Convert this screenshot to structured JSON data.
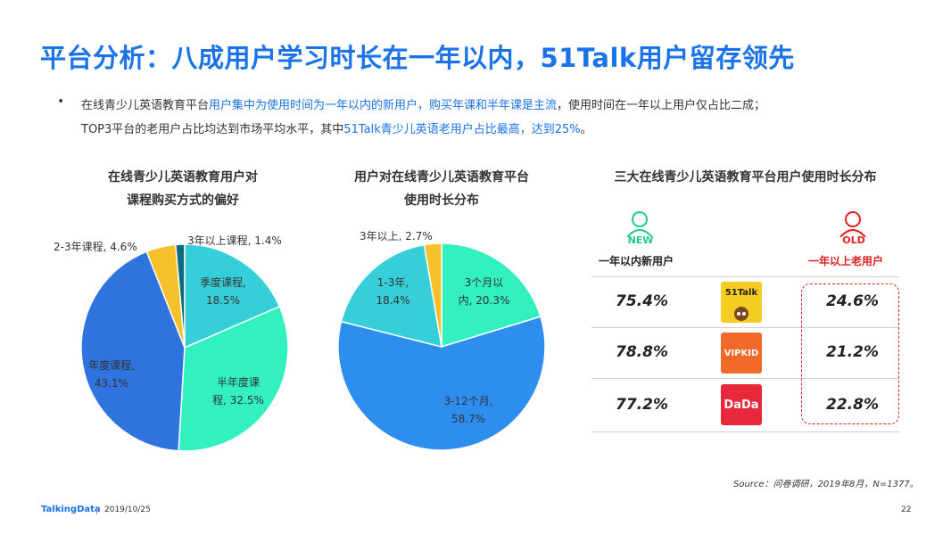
{
  "page": {
    "title": "平台分析：八成用户学习时长在一年以内，51Talk用户留存领先",
    "bullet": {
      "l1_a": "在线青少儿英语教育平台",
      "l1_b": "用户集中为使用时间为一年以内的新用户，购买年课和半年课是主流",
      "l1_c": "，使用时间在一年以上用户仅占比二成；",
      "l2_a": "TOP3平台的老用户占比均达到市场平均水平，其中",
      "l2_b": "51Talk青少儿英语老用户占比最高，达到25%",
      "l2_c": "。"
    },
    "source": "Source：问卷调研，2019年8月，N=1377。",
    "footer": {
      "brand": "TalkingData",
      "date": "2019/10/25",
      "page_no": "22"
    }
  },
  "chart_data": [
    {
      "type": "pie",
      "title_l1": "在线青少儿英语教育用户对",
      "title_l2": "课程购买方式的偏好",
      "slices": [
        {
          "label": "季度课程",
          "value": 18.5,
          "color": "#36cfd9",
          "t1": "季度课程,",
          "t2": "18.5%"
        },
        {
          "label": "半年度课程",
          "value": 32.5,
          "color": "#33f0c0",
          "t1": "半年度课",
          "t2": "程, 32.5%"
        },
        {
          "label": "年度课程",
          "value": 43.1,
          "color": "#2f73de",
          "t1": "年度课程,",
          "t2": "43.1%"
        },
        {
          "label": "2-3年课程",
          "value": 4.6,
          "color": "#f5c02a",
          "t1": "2-3年课程, 4.6%"
        },
        {
          "label": "3年以上课程",
          "value": 1.4,
          "color": "#0e6b7e",
          "t1": "3年以上课程, 1.4%"
        }
      ]
    },
    {
      "type": "pie",
      "title_l1": "用户对在线青少儿英语教育平台",
      "title_l2": "使用时长分布",
      "slices": [
        {
          "label": "3个月以内",
          "value": 20.3,
          "color": "#33f0c0",
          "t1": "3个月以",
          "t2": "内, 20.3%"
        },
        {
          "label": "3-12个月",
          "value": 58.7,
          "color": "#2e8ef0",
          "t1": "3-12个月,",
          "t2": "58.7%"
        },
        {
          "label": "1-3年",
          "value": 18.4,
          "color": "#36cfd9",
          "t1": "1-3年,",
          "t2": "18.4%"
        },
        {
          "label": "3年以上",
          "value": 2.7,
          "color": "#f5c02a",
          "t1": "3年以上, 2.7%"
        }
      ]
    },
    {
      "type": "table",
      "title": "三大在线青少儿英语教育平台用户使用时长分布",
      "new_badge": "NEW",
      "old_badge": "OLD",
      "new_header": "一年以内新用户",
      "old_header": "一年以上老用户",
      "rows": [
        {
          "platform": "51Talk",
          "logo_text": "51Talk",
          "new": "75.4%",
          "old": "24.6%"
        },
        {
          "platform": "VIPKID",
          "logo_text": "VIPKID",
          "new": "78.8%",
          "old": "21.2%"
        },
        {
          "platform": "DaDa",
          "logo_text": "DaDa",
          "new": "77.2%",
          "old": "22.8%"
        }
      ]
    }
  ]
}
